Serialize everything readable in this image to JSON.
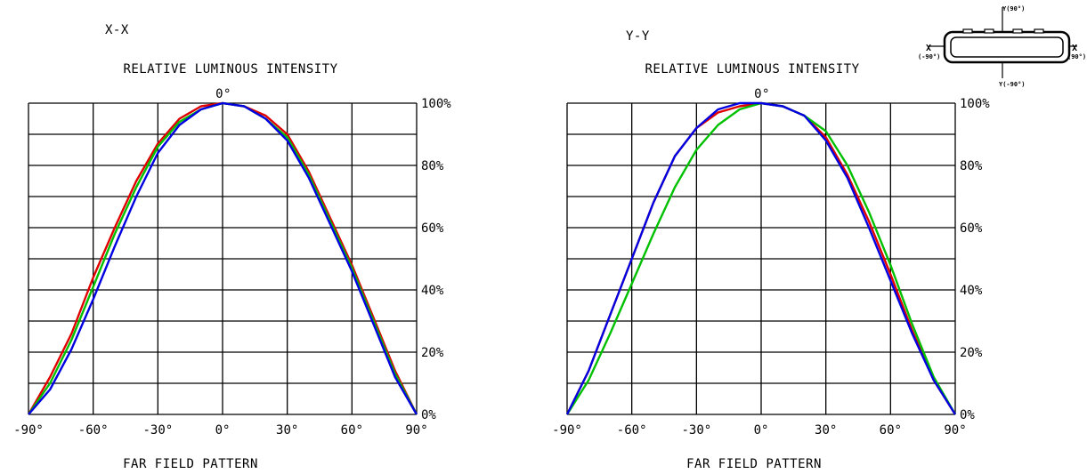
{
  "chart_data": [
    {
      "type": "line",
      "view_label": "X-X",
      "title": "RELATIVE LUMINOUS INTENSITY",
      "top_label": "0°",
      "xlabel": "FAR FIELD PATTERN",
      "ylabel": "",
      "xlim": [
        -90,
        90
      ],
      "ylim": [
        0,
        100
      ],
      "x_ticks": [
        {
          "value": -90,
          "label": "-90°"
        },
        {
          "value": -60,
          "label": "-60°"
        },
        {
          "value": -30,
          "label": "-30°"
        },
        {
          "value": 0,
          "label": "0°"
        },
        {
          "value": 30,
          "label": "30°"
        },
        {
          "value": 60,
          "label": "60°"
        },
        {
          "value": 90,
          "label": "90°"
        }
      ],
      "y_ticks": [
        {
          "value": 0,
          "label": "0%"
        },
        {
          "value": 20,
          "label": "20%"
        },
        {
          "value": 40,
          "label": "40%"
        },
        {
          "value": 60,
          "label": "60%"
        },
        {
          "value": 80,
          "label": "80%"
        },
        {
          "value": 100,
          "label": "100%"
        }
      ],
      "x_grid_step": 30,
      "y_grid_step": 10,
      "grid": true,
      "series": [
        {
          "color": "#e00000",
          "points": [
            [
              -90,
              0
            ],
            [
              -80,
              12
            ],
            [
              -70,
              26
            ],
            [
              -60,
              44
            ],
            [
              -50,
              60
            ],
            [
              -40,
              75
            ],
            [
              -30,
              87
            ],
            [
              -20,
              95
            ],
            [
              -10,
              99
            ],
            [
              0,
              100
            ],
            [
              10,
              99
            ],
            [
              20,
              96
            ],
            [
              30,
              90
            ],
            [
              40,
              78
            ],
            [
              50,
              63
            ],
            [
              60,
              48
            ],
            [
              70,
              31
            ],
            [
              80,
              14
            ],
            [
              90,
              0
            ]
          ]
        },
        {
          "color": "#00c000",
          "points": [
            [
              -90,
              0
            ],
            [
              -80,
              10
            ],
            [
              -70,
              24
            ],
            [
              -60,
              41
            ],
            [
              -50,
              58
            ],
            [
              -40,
              73
            ],
            [
              -30,
              86
            ],
            [
              -20,
              94
            ],
            [
              -10,
              98
            ],
            [
              0,
              100
            ],
            [
              10,
              99
            ],
            [
              20,
              95
            ],
            [
              30,
              89
            ],
            [
              40,
              77
            ],
            [
              50,
              62
            ],
            [
              60,
              47
            ],
            [
              70,
              30
            ],
            [
              80,
              13
            ],
            [
              90,
              0
            ]
          ]
        },
        {
          "color": "#0000e0",
          "points": [
            [
              -90,
              0
            ],
            [
              -80,
              8
            ],
            [
              -70,
              21
            ],
            [
              -60,
              37
            ],
            [
              -50,
              54
            ],
            [
              -40,
              70
            ],
            [
              -30,
              84
            ],
            [
              -20,
              93
            ],
            [
              -10,
              98
            ],
            [
              0,
              100
            ],
            [
              10,
              99
            ],
            [
              20,
              95
            ],
            [
              30,
              88
            ],
            [
              40,
              76
            ],
            [
              50,
              61
            ],
            [
              60,
              46
            ],
            [
              70,
              29
            ],
            [
              80,
              12
            ],
            [
              90,
              0
            ]
          ]
        }
      ]
    },
    {
      "type": "line",
      "view_label": "Y-Y",
      "title": "RELATIVE LUMINOUS INTENSITY",
      "top_label": "0°",
      "xlabel": "FAR FIELD PATTERN",
      "ylabel": "",
      "xlim": [
        -90,
        90
      ],
      "ylim": [
        0,
        100
      ],
      "x_ticks": [
        {
          "value": -90,
          "label": "-90°"
        },
        {
          "value": -60,
          "label": "-60°"
        },
        {
          "value": -30,
          "label": "-30°"
        },
        {
          "value": 0,
          "label": "0°"
        },
        {
          "value": 30,
          "label": "30°"
        },
        {
          "value": 60,
          "label": "60°"
        },
        {
          "value": 90,
          "label": "90°"
        }
      ],
      "y_ticks": [
        {
          "value": 0,
          "label": "0%"
        },
        {
          "value": 20,
          "label": "20%"
        },
        {
          "value": 40,
          "label": "40%"
        },
        {
          "value": 60,
          "label": "60%"
        },
        {
          "value": 80,
          "label": "80%"
        },
        {
          "value": 100,
          "label": "100%"
        }
      ],
      "x_grid_step": 30,
      "y_grid_step": 10,
      "grid": true,
      "series": [
        {
          "color": "#e00000",
          "points": [
            [
              -90,
              0
            ],
            [
              -80,
              14
            ],
            [
              -70,
              32
            ],
            [
              -60,
              50
            ],
            [
              -50,
              68
            ],
            [
              -40,
              83
            ],
            [
              -30,
              92
            ],
            [
              -20,
              97
            ],
            [
              -10,
              99
            ],
            [
              0,
              100
            ],
            [
              10,
              99
            ],
            [
              20,
              96
            ],
            [
              30,
              89
            ],
            [
              40,
              77
            ],
            [
              50,
              62
            ],
            [
              60,
              45
            ],
            [
              70,
              27
            ],
            [
              80,
              11
            ],
            [
              90,
              0
            ]
          ]
        },
        {
          "color": "#00c000",
          "points": [
            [
              -90,
              0
            ],
            [
              -80,
              11
            ],
            [
              -70,
              26
            ],
            [
              -60,
              42
            ],
            [
              -50,
              58
            ],
            [
              -40,
              73
            ],
            [
              -30,
              85
            ],
            [
              -20,
              93
            ],
            [
              -10,
              98
            ],
            [
              0,
              100
            ],
            [
              10,
              99
            ],
            [
              20,
              96
            ],
            [
              30,
              91
            ],
            [
              40,
              80
            ],
            [
              50,
              65
            ],
            [
              60,
              48
            ],
            [
              70,
              29
            ],
            [
              80,
              12
            ],
            [
              90,
              0
            ]
          ]
        },
        {
          "color": "#0000e0",
          "points": [
            [
              -90,
              0
            ],
            [
              -80,
              14
            ],
            [
              -70,
              32
            ],
            [
              -60,
              50
            ],
            [
              -50,
              68
            ],
            [
              -40,
              83
            ],
            [
              -30,
              92
            ],
            [
              -20,
              98
            ],
            [
              -10,
              100
            ],
            [
              0,
              100
            ],
            [
              10,
              99
            ],
            [
              20,
              96
            ],
            [
              30,
              88
            ],
            [
              40,
              76
            ],
            [
              50,
              60
            ],
            [
              60,
              43
            ],
            [
              70,
              26
            ],
            [
              80,
              11
            ],
            [
              90,
              0
            ]
          ]
        }
      ]
    }
  ],
  "orientation_icon": {
    "y_top": "Y(90°)",
    "y_bottom": "Y(-90°)",
    "x_left": "X",
    "x_left_sub": "(-90°)",
    "x_right": "X",
    "x_right_sub": "(90°)"
  }
}
